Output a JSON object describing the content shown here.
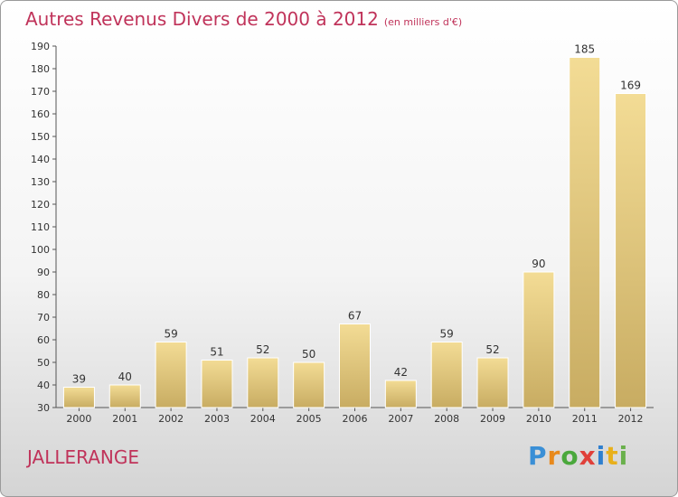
{
  "chart_data": {
    "type": "bar",
    "title": "Autres Revenus Divers de 2000 à 2012",
    "unit_label": "(en milliers d'€)",
    "categories": [
      "2000",
      "2001",
      "2002",
      "2003",
      "2004",
      "2005",
      "2006",
      "2007",
      "2008",
      "2009",
      "2010",
      "2011",
      "2012"
    ],
    "values": [
      39,
      40,
      59,
      51,
      52,
      50,
      67,
      42,
      59,
      52,
      90,
      185,
      169
    ],
    "ylim": [
      30,
      190
    ],
    "yticks": [
      30,
      40,
      50,
      60,
      70,
      80,
      90,
      100,
      110,
      120,
      130,
      140,
      150,
      160,
      170,
      180,
      190
    ],
    "grid": false,
    "data_labels": true,
    "bar_color_top": "#f3dc95",
    "bar_color_bottom": "#c8ac62",
    "title_color": "#c0335a"
  },
  "commune": "JALLERANGE",
  "logo": "Proxiti"
}
